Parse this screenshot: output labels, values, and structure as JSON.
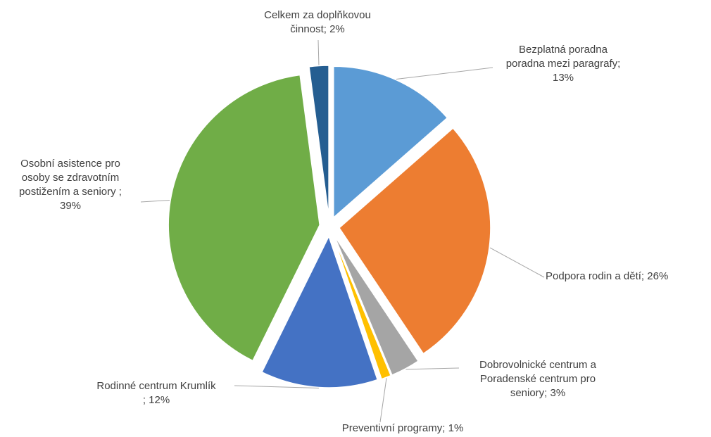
{
  "chart_data": {
    "type": "pie",
    "exploded": true,
    "legend": "none",
    "slices": [
      {
        "label_lines": [
          "Bezplatná poradna",
          "poradna mezi paragrafy;",
          "13%"
        ],
        "category": "Bezplatná poradna poradna mezi paragrafy",
        "value": 13,
        "color": "#5b9bd5"
      },
      {
        "label_lines": [
          "Podpora rodin a dětí; 26%"
        ],
        "category": "Podpora rodin a dětí",
        "value": 26,
        "color": "#ed7d31"
      },
      {
        "label_lines": [
          "Dobrovolnické centrum a",
          "Poradenské centrum pro",
          "seniory; 3%"
        ],
        "category": "Dobrovolnické centrum a Poradenské centrum pro seniory",
        "value": 3,
        "color": "#a5a5a5"
      },
      {
        "label_lines": [
          "Preventivní programy; 1%"
        ],
        "category": "Preventivní programy",
        "value": 1,
        "color": "#ffc000"
      },
      {
        "label_lines": [
          "Rodinné centrum Krumlík",
          "; 12%"
        ],
        "category": "Rodinné centrum Krumlík",
        "value": 12,
        "color": "#4472c4"
      },
      {
        "label_lines": [
          "Osobní asistence pro",
          "osoby se zdravotním",
          "postižením a seniory ;",
          "39%"
        ],
        "category": "Osobní asistence pro osoby se zdravotním postižením a seniory",
        "value": 39,
        "color": "#70ad47"
      },
      {
        "label_lines": [
          "Celkem za doplňkovou",
          "činnost; 2%"
        ],
        "category": "Celkem za doplňkovou činnost",
        "value": 2,
        "color": "#255e91"
      }
    ]
  }
}
